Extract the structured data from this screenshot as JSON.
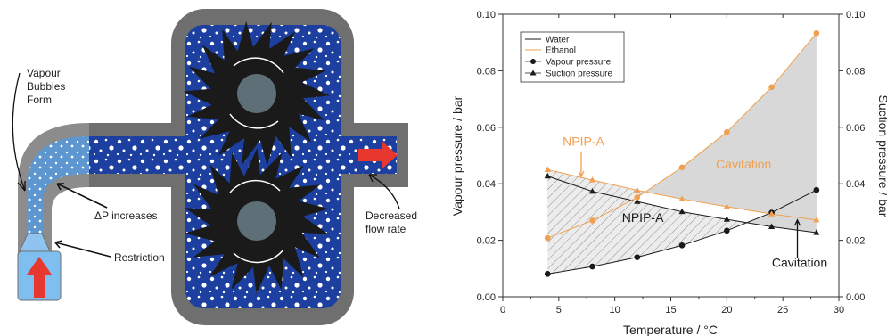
{
  "pump_diagram": {
    "labels": {
      "vapour_bubbles": [
        "Vapour",
        "Bubbles",
        "Form"
      ],
      "dp_increases": "ΔP increases",
      "restriction": "Restriction",
      "decreased_flow": [
        "Decreased",
        "flow rate"
      ]
    },
    "colors": {
      "casing": "#6f6f6f",
      "fluid": "#1c3fa0",
      "inlet": "#7fbff0",
      "arrow": "#e8372f",
      "gear": "#1a1a1a",
      "hub": "#5f6f78"
    }
  },
  "chart_data": {
    "type": "line",
    "xlabel": "Temperature / °C",
    "ylabel": "Vapour pressure / bar",
    "ylabel_right": "Suction pressure / bar",
    "xlim": [
      0,
      30
    ],
    "ylim": [
      0,
      0.1
    ],
    "xticks": [
      0,
      5,
      10,
      15,
      20,
      25,
      30
    ],
    "yticks": [
      0.0,
      0.02,
      0.04,
      0.06,
      0.08,
      0.1
    ],
    "x": [
      4,
      8,
      12,
      16,
      20,
      24,
      28
    ],
    "series": [
      {
        "fluid": "Water",
        "kind": "Vapour pressure",
        "color": "#1a1a1a",
        "marker": "circle",
        "values": [
          0.0081,
          0.0107,
          0.014,
          0.0182,
          0.0234,
          0.0298,
          0.0378
        ]
      },
      {
        "fluid": "Water",
        "kind": "Suction pressure",
        "color": "#1a1a1a",
        "marker": "triangle",
        "values": [
          0.0427,
          0.0373,
          0.0337,
          0.0301,
          0.0274,
          0.0248,
          0.0227
        ]
      },
      {
        "fluid": "Ethanol",
        "kind": "Vapour pressure",
        "color": "#f0a050",
        "marker": "circle",
        "values": [
          0.0208,
          0.027,
          0.0352,
          0.0458,
          0.0583,
          0.0742,
          0.0933
        ]
      },
      {
        "fluid": "Ethanol",
        "kind": "Suction pressure",
        "color": "#f0a050",
        "marker": "triangle",
        "values": [
          0.045,
          0.0413,
          0.0377,
          0.0346,
          0.0319,
          0.0293,
          0.0272
        ]
      }
    ],
    "legend": {
      "position": "top-left",
      "entries": [
        {
          "label": "Water",
          "style": "line",
          "color": "#1a1a1a"
        },
        {
          "label": "Ethanol",
          "style": "line",
          "color": "#f0a050"
        },
        {
          "label": "Vapour pressure",
          "style": "circle",
          "color": "#1a1a1a"
        },
        {
          "label": "Suction pressure",
          "style": "triangle",
          "color": "#1a1a1a"
        }
      ]
    },
    "annotations": [
      {
        "text": "NPIP-A",
        "color": "#f0a050",
        "x": 7.2,
        "y": 0.0535
      },
      {
        "text": "Cavitation",
        "color": "#f0a050",
        "x": 21.5,
        "y": 0.0455
      },
      {
        "text": "NPIP-A",
        "color": "#1a1a1a",
        "x": 12.5,
        "y": 0.0265
      },
      {
        "text": "Cavitation",
        "color": "#1a1a1a",
        "x": 26.5,
        "y": 0.0105
      }
    ],
    "grid": false
  }
}
